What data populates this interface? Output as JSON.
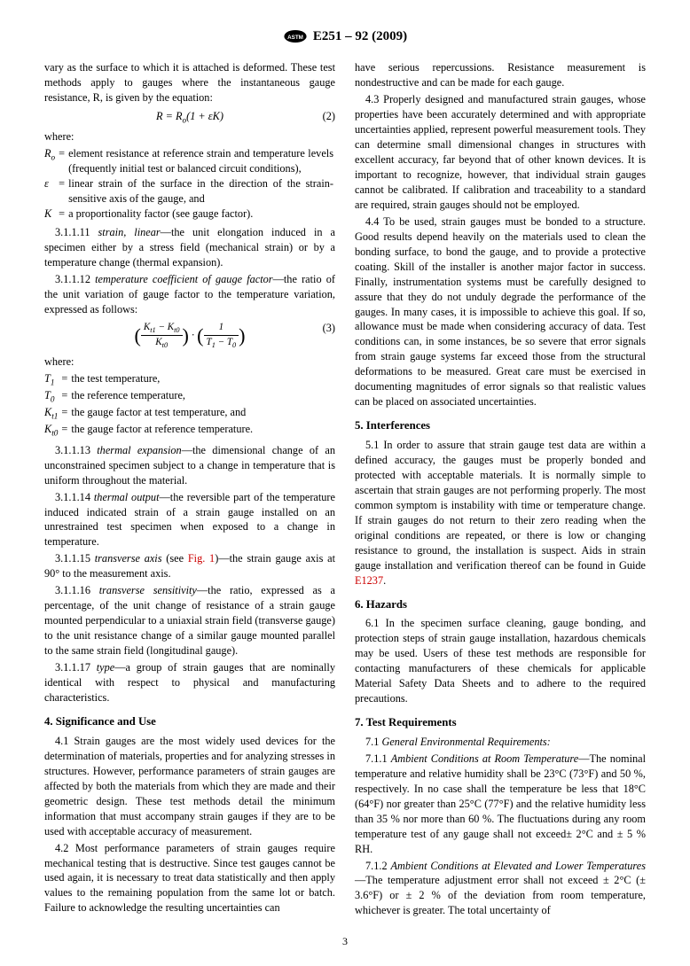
{
  "header": {
    "designation": "E251 – 92 (2009)"
  },
  "col1": {
    "intro": "vary as the surface to which it is attached is deformed. These test methods apply to gauges where the instantaneous gauge resistance, R, is given by the equation:",
    "eq2": {
      "lhs": "R = R",
      "sub": "o",
      "after": "(1 + εK)",
      "num": "(2)"
    },
    "where": "where:",
    "defs1": [
      {
        "sym": "R<sub>o</sub>",
        "txt": "element resistance at reference strain and temperature levels (frequently initial test or balanced circuit conditions),"
      },
      {
        "sym": "ε",
        "txt": "linear strain of the surface in the direction of the strain-sensitive axis of the gauge, and"
      },
      {
        "sym": "K",
        "txt": "a proportionality factor (see gauge factor)."
      }
    ],
    "p3_1_1_11": "3.1.1.11 <em>strain, linear</em>—the unit elongation induced in a specimen either by a stress field (mechanical strain) or by a temperature change (thermal expansion).",
    "p3_1_1_12": "3.1.1.12 <em>temperature coefficient of gauge factor</em>—the ratio of the unit variation of gauge factor to the temperature variation, expressed as follows:",
    "eq3_num": "(3)",
    "where2": "where:",
    "defs2": [
      {
        "sym": "T<sub>1</sub>",
        "txt": "the test temperature,"
      },
      {
        "sym": "T<sub>0</sub>",
        "txt": "the reference temperature,"
      },
      {
        "sym": "K<sub>t1</sub>",
        "txt": "the gauge factor at test temperature, and"
      },
      {
        "sym": "K<sub>t0</sub>",
        "txt": "the gauge factor at reference temperature."
      }
    ],
    "p3_1_1_13": "3.1.1.13 <em>thermal expansion</em>—the dimensional change of an unconstrained specimen subject to a change in temperature that is uniform throughout the material.",
    "p3_1_1_14": "3.1.1.14 <em>thermal output</em>—the reversible part of the temperature induced indicated strain of a strain gauge installed on an unrestrained test specimen when exposed to a change in temperature.",
    "p3_1_1_15_a": "3.1.1.15 <em>transverse axis</em> (see ",
    "p3_1_1_15_link": "Fig. 1",
    "p3_1_1_15_b": ")—the strain gauge axis at 90° to the measurement axis.",
    "p3_1_1_16": "3.1.1.16 <em>transverse sensitivity</em>—the ratio, expressed as a percentage, of the unit change of resistance of a strain gauge mounted perpendicular to a uniaxial strain field (transverse gauge) to the unit resistance change of a similar gauge mounted parallel to the same strain field (longitudinal gauge).",
    "p3_1_1_17": "3.1.1.17 <em>type</em>—a group of strain gauges that are nominally identical with respect to physical and manufacturing characteristics.",
    "sec4": "4. Significance and Use",
    "p4_1": "4.1 Strain gauges are the most widely used devices for the determination of materials, properties and for analyzing stresses in structures. However, performance parameters of strain gauges are affected by both the materials from which they are made and their geometric design. These test methods detail the minimum information that must accompany strain gauges if they are to be used with acceptable accuracy of measurement.",
    "p4_2": "4.2 Most performance parameters of strain gauges require mechanical testing that is destructive. Since test gauges cannot be used again, it is necessary to treat data statistically and then apply values to the remaining population from the same lot or batch. Failure to acknowledge the resulting uncertainties can"
  },
  "col2": {
    "cont": "have serious repercussions. Resistance measurement is nondestructive and can be made for each gauge.",
    "p4_3": "4.3 Properly designed and manufactured strain gauges, whose properties have been accurately determined and with appropriate uncertainties applied, represent powerful measurement tools. They can determine small dimensional changes in structures with excellent accuracy, far beyond that of other known devices. It is important to recognize, however, that individual strain gauges cannot be calibrated. If calibration and traceability to a standard are required, strain gauges should not be employed.",
    "p4_4": "4.4 To be used, strain gauges must be bonded to a structure. Good results depend heavily on the materials used to clean the bonding surface, to bond the gauge, and to provide a protective coating. Skill of the installer is another major factor in success. Finally, instrumentation systems must be carefully designed to assure that they do not unduly degrade the performance of the gauges. In many cases, it is impossible to achieve this goal. If so, allowance must be made when considering accuracy of data. Test conditions can, in some instances, be so severe that error signals from strain gauge systems far exceed those from the structural deformations to be measured. Great care must be exercised in documenting magnitudes of error signals so that realistic values can be placed on associated uncertainties.",
    "sec5": "5. Interferences",
    "p5_1_a": "5.1 In order to assure that strain gauge test data are within a defined accuracy, the gauges must be properly bonded and protected with acceptable materials. It is normally simple to ascertain that strain gauges are not performing properly. The most common symptom is instability with time or temperature change. If strain gauges do not return to their zero reading when the original conditions are repeated, or there is low or changing resistance to ground, the installation is suspect. Aids in strain gauge installation and verification thereof can be found in Guide ",
    "p5_1_link": "E1237",
    "p5_1_b": ".",
    "sec6": "6. Hazards",
    "p6_1": "6.1 In the specimen surface cleaning, gauge bonding, and protection steps of strain gauge installation, hazardous chemicals may be used. Users of these test methods are responsible for contacting manufacturers of these chemicals for applicable Material Safety Data Sheets and to adhere to the required precautions.",
    "sec7": "7. Test Requirements",
    "p7_1": "7.1 <em>General Environmental Requirements:</em>",
    "p7_1_1": "7.1.1 <em>Ambient Conditions at Room Temperature</em>—The nominal temperature and relative humidity shall be 23°C (73°F) and 50 %, respectively. In no case shall the temperature be less that 18°C (64°F) nor greater than 25°C (77°F) and the relative humidity less than 35 % nor more than 60 %. The fluctuations during any room temperature test of any gauge shall not exceed± 2°C and ± 5 % RH.",
    "p7_1_2": "7.1.2 <em>Ambient Conditions at Elevated and Lower Temperatures</em>—The temperature adjustment error shall not exceed ± 2°C (± 3.6°F) or ± 2 % of the deviation from room temperature, whichever is greater. The total uncertainty of"
  },
  "page_number": "3"
}
